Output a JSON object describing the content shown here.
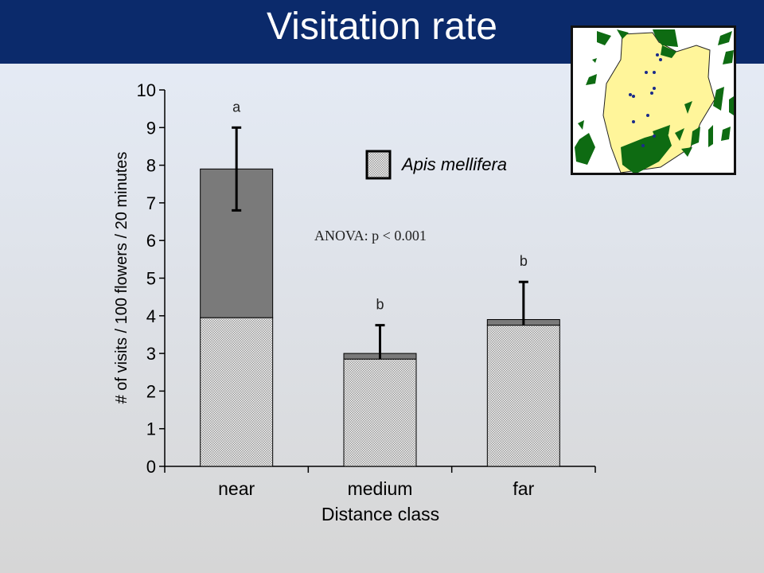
{
  "slide": {
    "title": "Visitation rate",
    "anova_note": "ANOVA: p < 0.001"
  },
  "chart_data": {
    "type": "bar",
    "stacked": true,
    "categories": [
      "near",
      "medium",
      "far"
    ],
    "series": [
      {
        "name": "Apis mellifera",
        "values": [
          3.95,
          2.85,
          3.75
        ],
        "pattern": "checkered",
        "color": "#e2e2e2"
      },
      {
        "values": [
          3.95,
          0.15,
          0.15
        ],
        "color": "#7a7a7a"
      }
    ],
    "totals": [
      7.9,
      3.0,
      3.9
    ],
    "error_bar_upper": [
      9.0,
      3.75,
      4.9
    ],
    "error_bar_lower": [
      6.8,
      2.85,
      3.75
    ],
    "significance_letters": [
      "a",
      "b",
      "b"
    ],
    "xlabel": "Distance class",
    "ylabel": "# of visits / 100 flowers / 20 minutes",
    "ylim": [
      0,
      10
    ],
    "yticks": [
      "0",
      "1",
      "2",
      "3",
      "4",
      "5",
      "6",
      "7",
      "8",
      "9",
      "10"
    ],
    "grid": false,
    "legend": {
      "position": "top-right",
      "label": "Apis mellifera"
    }
  },
  "map": {
    "colors": {
      "background": "#ffffff",
      "land": "#fff59a",
      "forest": "#0e6b12",
      "points": "#1a2a8a"
    }
  }
}
